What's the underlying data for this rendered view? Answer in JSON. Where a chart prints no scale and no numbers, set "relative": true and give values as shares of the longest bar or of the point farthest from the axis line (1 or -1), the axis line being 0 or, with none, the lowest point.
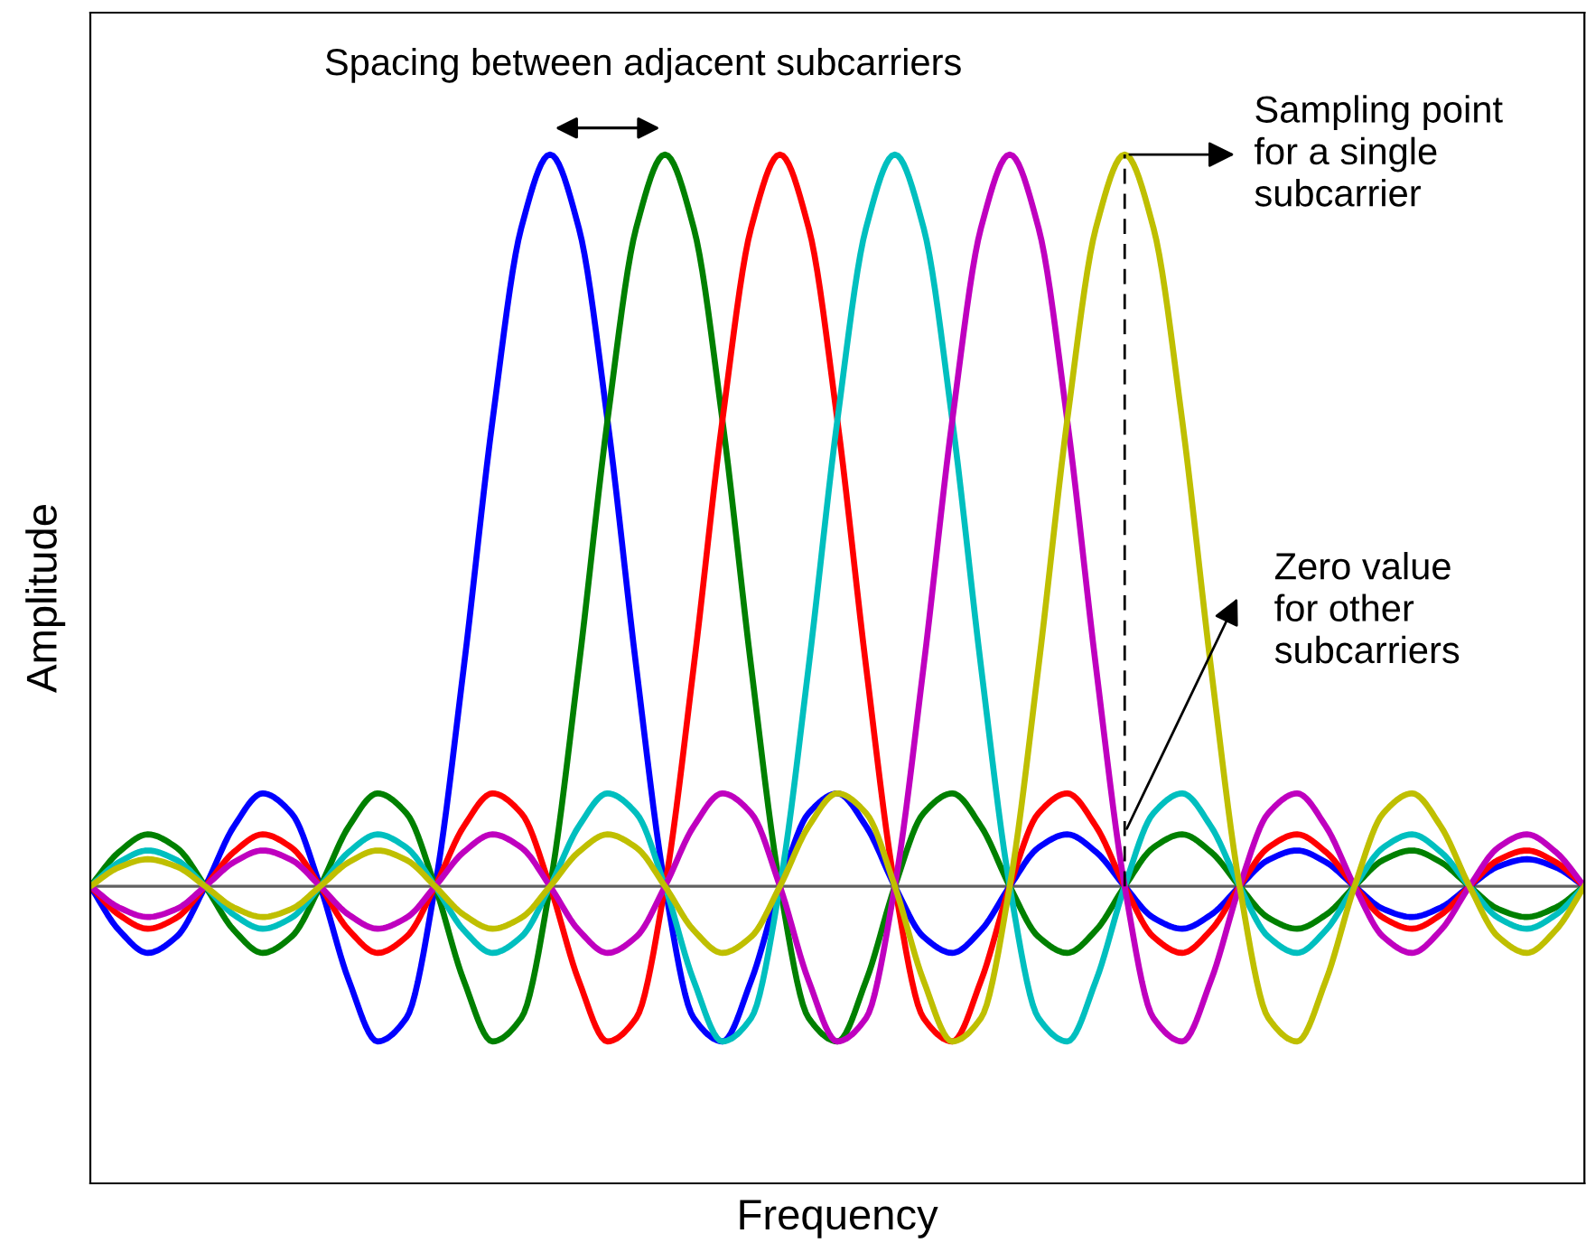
{
  "chart_data": {
    "type": "line",
    "relative": true,
    "xlabel": "Frequency",
    "ylabel": "Amplitude",
    "categories": [
      null,
      null,
      null,
      null,
      null,
      null,
      null,
      null,
      null,
      null,
      null,
      null,
      null,
      null,
      null,
      null,
      null,
      null,
      null,
      null,
      null,
      null,
      null,
      null,
      null,
      null,
      null,
      null,
      null,
      null,
      null,
      null,
      null,
      null,
      null,
      null,
      null,
      null,
      null,
      null,
      null,
      null,
      null,
      null,
      null,
      null,
      null,
      null,
      null,
      null,
      null,
      null,
      null
    ],
    "legend": false,
    "marker": "none",
    "line_style": "solid",
    "series": [
      {
        "color": "#0000ff",
        "values": [
          0,
          -0.06,
          -0.091,
          -0.069,
          0,
          0.082,
          0.127,
          0.1,
          0,
          -0.129,
          -0.212,
          -0.18,
          0,
          0.3,
          0.637,
          0.9,
          1,
          0.9,
          0.637,
          0.3,
          0,
          -0.18,
          -0.212,
          -0.129,
          0,
          0.1,
          0.127,
          0.082,
          0,
          -0.069,
          -0.091,
          -0.06,
          0,
          0.053,
          0.071,
          0.047,
          0,
          -0.043,
          -0.058,
          -0.039,
          0,
          0.036,
          0.049,
          0.033,
          0,
          -0.031,
          -0.042,
          -0.029,
          0,
          0.027,
          0.037,
          0.026,
          0
        ]
      },
      {
        "color": "#008000",
        "values": [
          0,
          0.047,
          0.071,
          0.053,
          0,
          -0.06,
          -0.091,
          -0.069,
          0,
          0.082,
          0.127,
          0.1,
          0,
          -0.129,
          -0.212,
          -0.18,
          0,
          0.3,
          0.637,
          0.9,
          1,
          0.9,
          0.637,
          0.3,
          0,
          -0.18,
          -0.212,
          -0.129,
          0,
          0.1,
          0.127,
          0.082,
          0,
          -0.069,
          -0.091,
          -0.06,
          0,
          0.053,
          0.071,
          0.047,
          0,
          -0.043,
          -0.058,
          -0.039,
          0,
          0.036,
          0.049,
          0.033,
          0,
          -0.031,
          -0.042,
          -0.029,
          0
        ]
      },
      {
        "color": "#ff0000",
        "values": [
          0,
          -0.039,
          -0.058,
          -0.043,
          0,
          0.047,
          0.071,
          0.053,
          0,
          -0.06,
          -0.091,
          -0.069,
          0,
          0.082,
          0.127,
          0.1,
          0,
          -0.129,
          -0.212,
          -0.18,
          0,
          0.3,
          0.637,
          0.9,
          1,
          0.9,
          0.637,
          0.3,
          0,
          -0.18,
          -0.212,
          -0.129,
          0,
          0.1,
          0.127,
          0.082,
          0,
          -0.069,
          -0.091,
          -0.06,
          0,
          0.053,
          0.071,
          0.047,
          0,
          -0.043,
          -0.058,
          -0.039,
          0,
          0.036,
          0.049,
          0.033,
          0
        ]
      },
      {
        "color": "#00bfbf",
        "values": [
          0,
          0.033,
          0.049,
          0.036,
          0,
          -0.039,
          -0.058,
          -0.043,
          0,
          0.047,
          0.071,
          0.053,
          0,
          -0.06,
          -0.091,
          -0.069,
          0,
          0.082,
          0.127,
          0.1,
          0,
          -0.129,
          -0.212,
          -0.18,
          0,
          0.3,
          0.637,
          0.9,
          1,
          0.9,
          0.637,
          0.3,
          0,
          -0.18,
          -0.212,
          -0.129,
          0,
          0.1,
          0.127,
          0.082,
          0,
          -0.069,
          -0.091,
          -0.06,
          0,
          0.053,
          0.071,
          0.047,
          0,
          -0.043,
          -0.058,
          -0.039,
          0
        ]
      },
      {
        "color": "#bf00bf",
        "values": [
          0,
          -0.029,
          -0.042,
          -0.031,
          0,
          0.033,
          0.049,
          0.036,
          0,
          -0.039,
          -0.058,
          -0.043,
          0,
          0.047,
          0.071,
          0.053,
          0,
          -0.06,
          -0.091,
          -0.069,
          0,
          0.082,
          0.127,
          0.1,
          0,
          -0.129,
          -0.212,
          -0.18,
          0,
          0.3,
          0.637,
          0.9,
          1,
          0.9,
          0.637,
          0.3,
          0,
          -0.18,
          -0.212,
          -0.129,
          0,
          0.1,
          0.127,
          0.082,
          0,
          -0.069,
          -0.091,
          -0.06,
          0,
          0.053,
          0.071,
          0.047,
          0
        ]
      },
      {
        "color": "#bfbf00",
        "values": [
          0,
          0.026,
          0.037,
          0.027,
          0,
          -0.029,
          -0.042,
          -0.031,
          0,
          0.033,
          0.049,
          0.036,
          0,
          -0.039,
          -0.058,
          -0.043,
          0,
          0.047,
          0.071,
          0.053,
          0,
          -0.06,
          -0.091,
          -0.069,
          0,
          0.082,
          0.127,
          0.1,
          0,
          -0.129,
          -0.212,
          -0.18,
          0,
          0.3,
          0.637,
          0.9,
          1,
          0.9,
          0.637,
          0.3,
          0,
          -0.18,
          -0.212,
          -0.129,
          0,
          0.1,
          0.127,
          0.082,
          0,
          -0.069,
          -0.091,
          -0.06,
          0
        ]
      }
    ],
    "annotations": [
      "Spacing between adjacent subcarriers",
      "Sampling point\nfor a single\nsubcarrier",
      "Zero value\nfor other\nsubcarriers"
    ]
  }
}
